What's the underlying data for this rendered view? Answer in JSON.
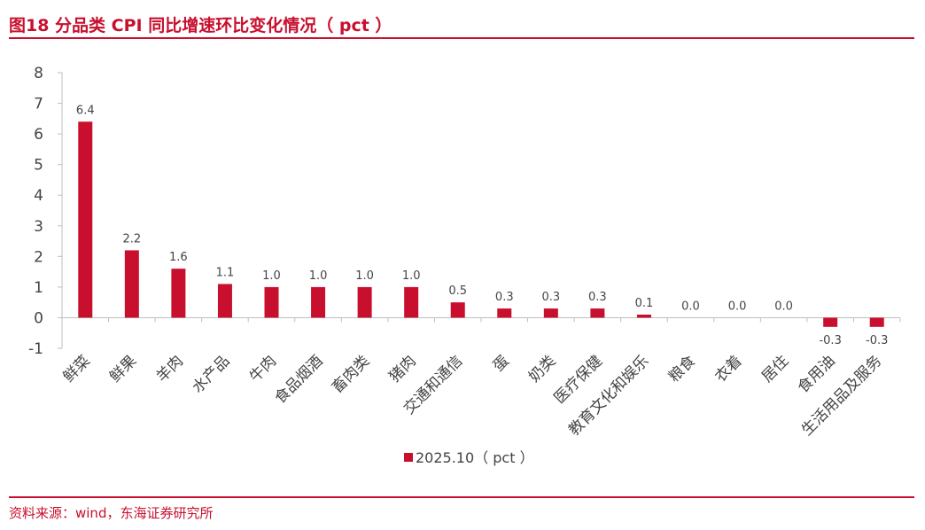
{
  "header": {
    "title": "图18  分品类 CPI 同比增速环比变化情况（ pct ）"
  },
  "footer": {
    "source": "资料来源：wind，东海证券研究所"
  },
  "colors": {
    "accent": "#c8102e",
    "bar": "#c8102e",
    "axis": "#bfbfbf",
    "text": "#444444"
  },
  "chart_data": {
    "type": "bar",
    "title": "",
    "xlabel": "",
    "ylabel": "",
    "ylim": [
      -1,
      8
    ],
    "yticks": [
      8,
      7,
      6,
      5,
      4,
      3,
      2,
      1,
      0,
      -1
    ],
    "grid": false,
    "legend_position": "bottom",
    "categories": [
      "鲜菜",
      "鲜果",
      "羊肉",
      "水产品",
      "牛肉",
      "食品烟酒",
      "畜肉类",
      "猪肉",
      "交通和通信",
      "蛋",
      "奶类",
      "医疗保健",
      "教育文化和娱乐",
      "粮食",
      "衣着",
      "居住",
      "食用油",
      "生活用品及服务"
    ],
    "series": [
      {
        "name": "2025.10（ pct ）",
        "values": [
          6.4,
          2.2,
          1.6,
          1.1,
          1.0,
          1.0,
          1.0,
          1.0,
          0.5,
          0.3,
          0.3,
          0.3,
          0.1,
          0.0,
          0.0,
          0.0,
          -0.3,
          -0.3
        ],
        "labels": [
          "6.4",
          "2.2",
          "1.6",
          "1.1",
          "1.0",
          "1.0",
          "1.0",
          "1.0",
          "0.5",
          "0.3",
          "0.3",
          "0.3",
          "0.1",
          "0.0",
          "0.0",
          "0.0",
          "-0.3",
          "-0.3"
        ]
      }
    ]
  }
}
